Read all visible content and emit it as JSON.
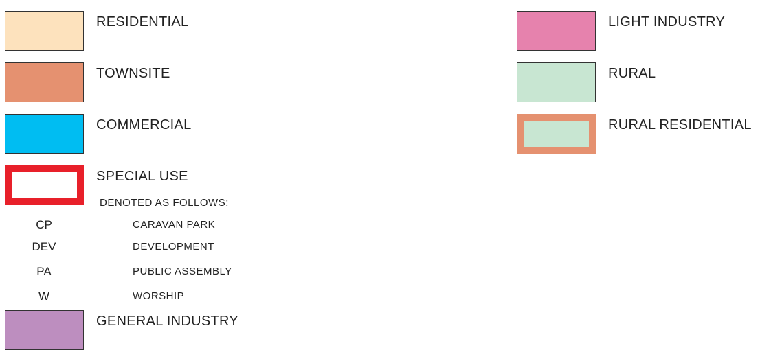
{
  "legend": {
    "left": [
      {
        "label": "RESIDENTIAL",
        "fill": "#fde2bd",
        "border": "#333333"
      },
      {
        "label": "TOWNSITE",
        "fill": "#e59170",
        "border": "#333333"
      },
      {
        "label": "COMMERCIAL",
        "fill": "#00bdf2",
        "border": "#333333"
      },
      {
        "label": "SPECIAL USE",
        "fill": "#ffffff",
        "border": "#e8202a"
      },
      {
        "label": "GENERAL INDUSTRY",
        "fill": "#bd8ebf",
        "border": "#333333"
      }
    ],
    "right": [
      {
        "label": "LIGHT INDUSTRY",
        "fill": "#e682ad",
        "border": "#333333"
      },
      {
        "label": "RURAL",
        "fill": "#c8e6d2",
        "border": "#333333"
      },
      {
        "label": "RURAL RESIDENTIAL",
        "fill": "#c8e6d2",
        "border": "#e59170"
      }
    ],
    "special_use_note": "DENOTED AS FOLLOWS:",
    "codes": [
      {
        "code": "CP",
        "meaning": "CARAVAN PARK"
      },
      {
        "code": "DEV",
        "meaning": "DEVELOPMENT"
      },
      {
        "code": "PA",
        "meaning": "PUBLIC ASSEMBLY"
      },
      {
        "code": "W",
        "meaning": "WORSHIP"
      }
    ]
  }
}
